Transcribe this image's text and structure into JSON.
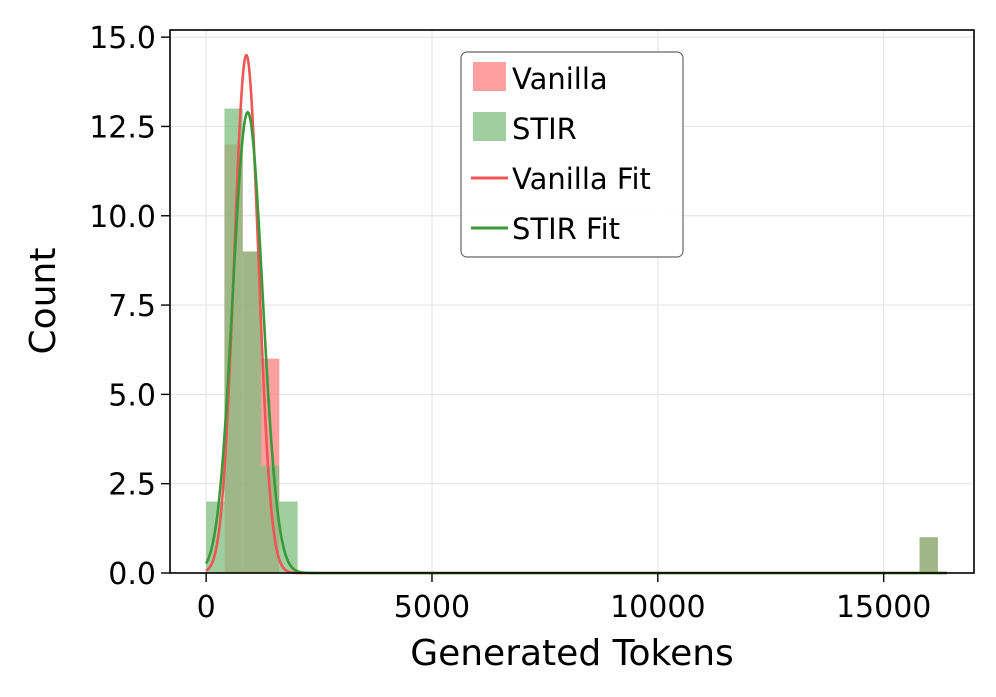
{
  "chart_data": {
    "type": "bar",
    "xlabel": "Generated Tokens",
    "ylabel": "Count",
    "xlim": [
      -800,
      17000
    ],
    "ylim": [
      0,
      15.2
    ],
    "xticks": [
      0,
      5000,
      10000,
      15000
    ],
    "yticks": [
      0.0,
      2.5,
      5.0,
      7.5,
      10.0,
      12.5,
      15.0
    ],
    "xtick_labels": [
      "0",
      "5000",
      "10000",
      "15000"
    ],
    "ytick_labels": [
      "0.0",
      "2.5",
      "5.0",
      "7.5",
      "10.0",
      "12.5",
      "15.0"
    ],
    "grid": true,
    "legend_position": "top-center",
    "bin_width": 405,
    "series": [
      {
        "name": "Vanilla",
        "kind": "histogram",
        "color": "#ff7f7f",
        "bins": [
          {
            "x0": 0,
            "count": 0
          },
          {
            "x0": 405,
            "count": 12
          },
          {
            "x0": 810,
            "count": 9
          },
          {
            "x0": 1215,
            "count": 6
          },
          {
            "x0": 1620,
            "count": 0
          },
          {
            "x0": 15795,
            "count": 1
          }
        ]
      },
      {
        "name": "STIR",
        "kind": "histogram",
        "color": "#7fbf7f",
        "bins": [
          {
            "x0": 0,
            "count": 2
          },
          {
            "x0": 405,
            "count": 13
          },
          {
            "x0": 810,
            "count": 9
          },
          {
            "x0": 1215,
            "count": 3
          },
          {
            "x0": 1620,
            "count": 2
          },
          {
            "x0": 15795,
            "count": 1
          }
        ]
      },
      {
        "name": "Vanilla Fit",
        "kind": "fit",
        "color": "#ee5555",
        "peak": 14.5,
        "mean": 890,
        "sd": 270
      },
      {
        "name": "STIR Fit",
        "kind": "fit",
        "color": "#3a9a3a",
        "peak": 12.9,
        "mean": 920,
        "sd": 330
      }
    ]
  }
}
